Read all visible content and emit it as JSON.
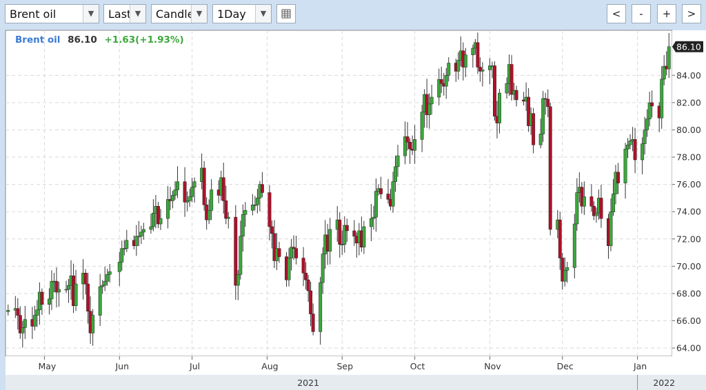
{
  "toolbar": {
    "instrument": "Brent oil",
    "price_type": "Last",
    "chart_type": "Candle",
    "interval": "1Day",
    "nav_prev": "<",
    "zoom_out": "-",
    "zoom_in": "+",
    "nav_next": ">",
    "dropdown_arrow": "▼"
  },
  "colors": {
    "up": "#3aa83a",
    "down": "#b0102a",
    "instrument_label": "#3a7bd5",
    "change_label": "#3aa83a",
    "grid": "#d9d9d9",
    "price_tag_bg": "#222222"
  },
  "chart_data": {
    "type": "candlestick",
    "legend": {
      "instrument": "Brent oil",
      "last": "86.10",
      "change": "+1.63(+1.93%)"
    },
    "y_axis": {
      "min": 63.5,
      "max": 87.2,
      "ticks": [
        "64.00",
        "66.00",
        "68.00",
        "70.00",
        "72.00",
        "74.00",
        "76.00",
        "78.00",
        "80.00",
        "82.00",
        "84.00"
      ]
    },
    "last_price_label": "86.10",
    "month_labels": [
      {
        "label": "May",
        "date": "2021-05-01"
      },
      {
        "label": "Jun",
        "date": "2021-06-01"
      },
      {
        "label": "Jul",
        "date": "2021-07-01"
      },
      {
        "label": "Aug",
        "date": "2021-08-01"
      },
      {
        "label": "Sep",
        "date": "2021-09-01"
      },
      {
        "label": "Oct",
        "date": "2021-10-01"
      },
      {
        "label": "Nov",
        "date": "2021-11-01"
      },
      {
        "label": "Dec",
        "date": "2021-12-01"
      },
      {
        "label": "Jan",
        "date": "2022-01-01"
      }
    ],
    "year_labels": [
      "2021",
      "2022"
    ],
    "grid": true,
    "close_series": [
      [
        "2021-04-16",
        66.77
      ],
      [
        "2021-04-19",
        66.9
      ],
      [
        "2021-04-20",
        66.4
      ],
      [
        "2021-04-21",
        65.1
      ],
      [
        "2021-04-22",
        65.5
      ],
      [
        "2021-04-23",
        66.1
      ],
      [
        "2021-04-26",
        65.6
      ],
      [
        "2021-04-27",
        66.4
      ],
      [
        "2021-04-28",
        66.8
      ],
      [
        "2021-04-29",
        68.1
      ],
      [
        "2021-04-30",
        67.2
      ],
      [
        "2021-05-03",
        67.6
      ],
      [
        "2021-05-04",
        68.9
      ],
      [
        "2021-05-05",
        68.9
      ],
      [
        "2021-05-06",
        68.1
      ],
      [
        "2021-05-07",
        68.3
      ],
      [
        "2021-05-10",
        68.3
      ],
      [
        "2021-05-11",
        68.6
      ],
      [
        "2021-05-12",
        69.3
      ],
      [
        "2021-05-13",
        67.1
      ],
      [
        "2021-05-14",
        68.7
      ],
      [
        "2021-05-17",
        69.5
      ],
      [
        "2021-05-18",
        68.7
      ],
      [
        "2021-05-19",
        66.7
      ],
      [
        "2021-05-20",
        65.1
      ],
      [
        "2021-05-21",
        66.4
      ],
      [
        "2021-05-24",
        68.5
      ],
      [
        "2021-05-25",
        68.6
      ],
      [
        "2021-05-26",
        68.9
      ],
      [
        "2021-05-27",
        69.4
      ],
      [
        "2021-05-28",
        69.6
      ],
      [
        "2021-06-01",
        70.3
      ],
      [
        "2021-06-02",
        71.3
      ],
      [
        "2021-06-03",
        71.3
      ],
      [
        "2021-06-04",
        71.9
      ],
      [
        "2021-06-07",
        71.5
      ],
      [
        "2021-06-08",
        72.2
      ],
      [
        "2021-06-09",
        72.2
      ],
      [
        "2021-06-10",
        72.5
      ],
      [
        "2021-06-11",
        72.7
      ],
      [
        "2021-06-14",
        72.9
      ],
      [
        "2021-06-15",
        73.9
      ],
      [
        "2021-06-16",
        74.4
      ],
      [
        "2021-06-17",
        73.1
      ],
      [
        "2021-06-18",
        73.5
      ],
      [
        "2021-06-21",
        74.9
      ],
      [
        "2021-06-22",
        74.8
      ],
      [
        "2021-06-23",
        75.2
      ],
      [
        "2021-06-24",
        75.6
      ],
      [
        "2021-06-25",
        76.2
      ],
      [
        "2021-06-28",
        74.7
      ],
      [
        "2021-06-29",
        74.8
      ],
      [
        "2021-06-30",
        75.1
      ],
      [
        "2021-07-01",
        75.8
      ],
      [
        "2021-07-02",
        76.2
      ],
      [
        "2021-07-05",
        77.2
      ],
      [
        "2021-07-06",
        74.5
      ],
      [
        "2021-07-07",
        73.4
      ],
      [
        "2021-07-08",
        74.1
      ],
      [
        "2021-07-09",
        75.6
      ],
      [
        "2021-07-12",
        75.2
      ],
      [
        "2021-07-13",
        76.5
      ],
      [
        "2021-07-14",
        74.8
      ],
      [
        "2021-07-15",
        73.5
      ],
      [
        "2021-07-16",
        73.6
      ],
      [
        "2021-07-19",
        68.6
      ],
      [
        "2021-07-20",
        69.4
      ],
      [
        "2021-07-21",
        72.2
      ],
      [
        "2021-07-22",
        73.8
      ],
      [
        "2021-07-23",
        74.1
      ],
      [
        "2021-07-26",
        74.5
      ],
      [
        "2021-07-27",
        74.5
      ],
      [
        "2021-07-28",
        75.0
      ],
      [
        "2021-07-29",
        76.0
      ],
      [
        "2021-07-30",
        75.4
      ],
      [
        "2021-08-02",
        72.9
      ],
      [
        "2021-08-03",
        72.4
      ],
      [
        "2021-08-04",
        70.4
      ],
      [
        "2021-08-05",
        71.3
      ],
      [
        "2021-08-06",
        70.7
      ],
      [
        "2021-08-09",
        69.0
      ],
      [
        "2021-08-10",
        70.6
      ],
      [
        "2021-08-11",
        71.4
      ],
      [
        "2021-08-12",
        71.3
      ],
      [
        "2021-08-13",
        70.6
      ],
      [
        "2021-08-16",
        69.5
      ],
      [
        "2021-08-17",
        69.0
      ],
      [
        "2021-08-18",
        68.2
      ],
      [
        "2021-08-19",
        66.5
      ],
      [
        "2021-08-20",
        65.2
      ],
      [
        "2021-08-23",
        68.8
      ],
      [
        "2021-08-24",
        70.9
      ],
      [
        "2021-08-25",
        72.3
      ],
      [
        "2021-08-26",
        71.1
      ],
      [
        "2021-08-27",
        72.7
      ],
      [
        "2021-08-30",
        73.4
      ],
      [
        "2021-08-31",
        71.6
      ],
      [
        "2021-09-01",
        71.6
      ],
      [
        "2021-09-02",
        73.0
      ],
      [
        "2021-09-03",
        72.6
      ],
      [
        "2021-09-06",
        72.2
      ],
      [
        "2021-09-07",
        71.7
      ],
      [
        "2021-09-08",
        72.6
      ],
      [
        "2021-09-09",
        71.4
      ],
      [
        "2021-09-10",
        72.9
      ],
      [
        "2021-09-13",
        73.5
      ],
      [
        "2021-09-14",
        73.6
      ],
      [
        "2021-09-15",
        75.5
      ],
      [
        "2021-09-16",
        75.7
      ],
      [
        "2021-09-17",
        75.3
      ],
      [
        "2021-09-20",
        74.9
      ],
      [
        "2021-09-21",
        74.4
      ],
      [
        "2021-09-22",
        76.2
      ],
      [
        "2021-09-23",
        77.3
      ],
      [
        "2021-09-24",
        78.1
      ],
      [
        "2021-09-27",
        79.5
      ],
      [
        "2021-09-28",
        79.1
      ],
      [
        "2021-09-29",
        78.6
      ],
      [
        "2021-09-30",
        78.5
      ],
      [
        "2021-10-01",
        79.3
      ],
      [
        "2021-10-04",
        81.3
      ],
      [
        "2021-10-05",
        82.6
      ],
      [
        "2021-10-06",
        81.1
      ],
      [
        "2021-10-07",
        81.9
      ],
      [
        "2021-10-08",
        82.4
      ],
      [
        "2021-10-11",
        83.7
      ],
      [
        "2021-10-12",
        83.4
      ],
      [
        "2021-10-13",
        83.2
      ],
      [
        "2021-10-14",
        84.0
      ],
      [
        "2021-10-15",
        84.9
      ],
      [
        "2021-10-18",
        84.3
      ],
      [
        "2021-10-19",
        85.1
      ],
      [
        "2021-10-20",
        85.8
      ],
      [
        "2021-10-21",
        84.6
      ],
      [
        "2021-10-22",
        85.5
      ],
      [
        "2021-10-25",
        85.99
      ],
      [
        "2021-10-26",
        86.4
      ],
      [
        "2021-10-27",
        84.6
      ],
      [
        "2021-10-28",
        84.3
      ],
      [
        "2021-10-29",
        84.4
      ],
      [
        "2021-11-01",
        84.7
      ],
      [
        "2021-11-02",
        84.7
      ],
      [
        "2021-11-03",
        81.0
      ],
      [
        "2021-11-04",
        80.5
      ],
      [
        "2021-11-05",
        82.7
      ],
      [
        "2021-11-08",
        83.4
      ],
      [
        "2021-11-09",
        84.8
      ],
      [
        "2021-11-10",
        82.6
      ],
      [
        "2021-11-11",
        82.9
      ],
      [
        "2021-11-12",
        82.2
      ],
      [
        "2021-11-15",
        82.1
      ],
      [
        "2021-11-16",
        82.4
      ],
      [
        "2021-11-17",
        80.3
      ],
      [
        "2021-11-18",
        81.2
      ],
      [
        "2021-11-19",
        78.9
      ],
      [
        "2021-11-22",
        79.7
      ],
      [
        "2021-11-23",
        82.3
      ],
      [
        "2021-11-24",
        82.25
      ],
      [
        "2021-11-25",
        81.7
      ],
      [
        "2021-11-26",
        72.7
      ],
      [
        "2021-11-29",
        73.4
      ],
      [
        "2021-11-30",
        70.6
      ],
      [
        "2021-12-01",
        68.9
      ],
      [
        "2021-12-02",
        69.7
      ],
      [
        "2021-12-03",
        69.9
      ],
      [
        "2021-12-06",
        73.1
      ],
      [
        "2021-12-07",
        75.4
      ],
      [
        "2021-12-08",
        75.8
      ],
      [
        "2021-12-09",
        74.4
      ],
      [
        "2021-12-10",
        75.1
      ],
      [
        "2021-12-13",
        74.4
      ],
      [
        "2021-12-14",
        73.7
      ],
      [
        "2021-12-15",
        73.9
      ],
      [
        "2021-12-16",
        75.0
      ],
      [
        "2021-12-17",
        73.5
      ],
      [
        "2021-12-20",
        71.5
      ],
      [
        "2021-12-21",
        73.98
      ],
      [
        "2021-12-22",
        75.3
      ],
      [
        "2021-12-23",
        76.9
      ],
      [
        "2021-12-24",
        76.1
      ],
      [
        "2021-12-27",
        78.6
      ],
      [
        "2021-12-28",
        78.9
      ],
      [
        "2021-12-29",
        79.2
      ],
      [
        "2021-12-30",
        79.3
      ],
      [
        "2021-12-31",
        77.8
      ],
      [
        "2022-01-03",
        78.98
      ],
      [
        "2022-01-04",
        80.0
      ],
      [
        "2022-01-05",
        80.8
      ],
      [
        "2022-01-06",
        81.99
      ],
      [
        "2022-01-07",
        81.75
      ],
      [
        "2022-01-10",
        80.87
      ],
      [
        "2022-01-11",
        83.72
      ],
      [
        "2022-01-12",
        84.67
      ],
      [
        "2022-01-13",
        84.47
      ],
      [
        "2022-01-14",
        86.1
      ]
    ]
  }
}
